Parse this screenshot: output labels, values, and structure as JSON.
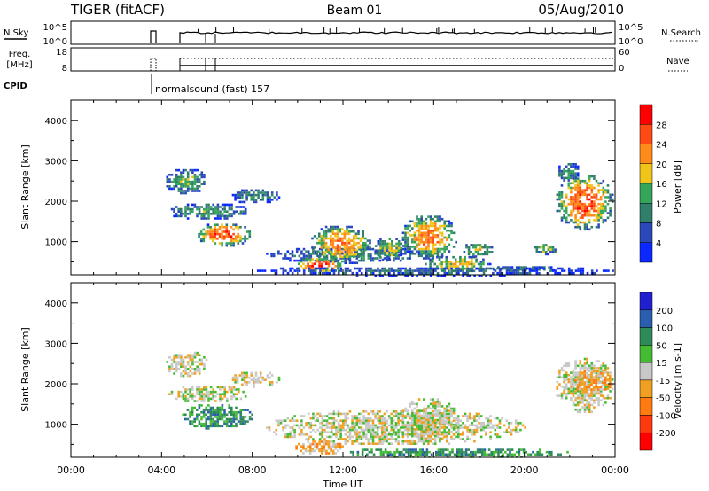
{
  "header": {
    "title": "TIGER (fitACF)",
    "beam": "Beam 01",
    "date": "05/Aug/2010"
  },
  "status": {
    "nsky_label": "N.Sky",
    "nsky_ticks": [
      "10^5",
      "10^0"
    ],
    "nsearch_label": "N.Search",
    "freq_label": [
      "Freq.",
      "[MHz]"
    ],
    "freq_ticks": [
      "18",
      "8"
    ],
    "nave_label": "Nave",
    "nave_ticks": [
      "60",
      "0"
    ],
    "cpid_label": "CPID",
    "cpid_text": "normalsound (fast) 157"
  },
  "chart_data": [
    {
      "type": "heatmap",
      "name": "power",
      "title": "",
      "xlabel": "Time UT",
      "ylabel": "Slant Range [km]",
      "xlim": [
        0,
        24
      ],
      "ylim": [
        180,
        4500
      ],
      "x_ticks": [
        "00:00",
        "04:00",
        "08:00",
        "12:00",
        "16:00",
        "20:00",
        "00:00"
      ],
      "y_ticks": [
        1000,
        2000,
        3000,
        4000
      ],
      "colorbar": {
        "label": "Power [dB]",
        "ticks": [
          "4",
          "8",
          "12",
          "16",
          "20",
          "24",
          "28"
        ],
        "colors": [
          "#0a28ff",
          "#2a48b8",
          "#2f7f6a",
          "#35a55a",
          "#f0c418",
          "#ff8c1a",
          "#ff4a14",
          "#ff0000"
        ]
      },
      "regions": [
        {
          "t0": 4.1,
          "t1": 6.0,
          "r0": 2200,
          "r1": 2850,
          "level": 0.45
        },
        {
          "t0": 4.2,
          "t1": 7.8,
          "r0": 1550,
          "r1": 2000,
          "level": 0.4
        },
        {
          "t0": 5.5,
          "t1": 7.9,
          "r0": 900,
          "r1": 1500,
          "level": 0.85
        },
        {
          "t0": 7.0,
          "t1": 9.2,
          "r0": 1950,
          "r1": 2350,
          "level": 0.35
        },
        {
          "t0": 8.5,
          "t1": 16.0,
          "r0": 500,
          "r1": 900,
          "level": 0.35
        },
        {
          "t0": 9.8,
          "t1": 12.0,
          "r0": 250,
          "r1": 650,
          "level": 0.9
        },
        {
          "t0": 10.5,
          "t1": 13.2,
          "r0": 500,
          "r1": 1450,
          "level": 0.75
        },
        {
          "t0": 13.3,
          "t1": 14.7,
          "r0": 550,
          "r1": 1150,
          "level": 0.55
        },
        {
          "t0": 14.5,
          "t1": 17.0,
          "r0": 600,
          "r1": 1700,
          "level": 0.75
        },
        {
          "t0": 15.5,
          "t1": 18.5,
          "r0": 250,
          "r1": 700,
          "level": 0.6
        },
        {
          "t0": 17.2,
          "t1": 18.6,
          "r0": 650,
          "r1": 1000,
          "level": 0.55
        },
        {
          "t0": 18.5,
          "t1": 21.5,
          "r0": 280,
          "r1": 450,
          "level": 0.3
        },
        {
          "t0": 20.3,
          "t1": 21.4,
          "r0": 700,
          "r1": 1000,
          "level": 0.55
        },
        {
          "t0": 21.3,
          "t1": 23.9,
          "r0": 1300,
          "r1": 2700,
          "level": 0.85
        },
        {
          "t0": 21.4,
          "t1": 22.4,
          "r0": 2500,
          "r1": 3000,
          "level": 0.4
        },
        {
          "t0": 8.0,
          "t1": 23.9,
          "r0": 180,
          "r1": 420,
          "level": 0.25
        }
      ]
    },
    {
      "type": "heatmap",
      "name": "velocity",
      "title": "",
      "xlabel": "Time UT",
      "ylabel": "Slant Range [km]",
      "xlim": [
        0,
        24
      ],
      "ylim": [
        180,
        4500
      ],
      "x_ticks": [
        "00:00",
        "04:00",
        "08:00",
        "12:00",
        "16:00",
        "20:00",
        "00:00"
      ],
      "y_ticks": [
        1000,
        2000,
        3000,
        4000
      ],
      "colorbar": {
        "label": "Velocity [m s-1]",
        "ticks": [
          "200",
          "100",
          "50",
          "15",
          "-15",
          "-50",
          "-100",
          "-200"
        ],
        "colors": [
          "#2020d0",
          "#2a5fb0",
          "#2f8a5a",
          "#44bb33",
          "#c8c8c8",
          "#f0a020",
          "#ff7a10",
          "#ff3a10",
          "#ff0000"
        ]
      },
      "regions": [
        {
          "t0": 4.1,
          "t1": 6.0,
          "r0": 2200,
          "r1": 2850,
          "level": 0.5
        },
        {
          "t0": 4.2,
          "t1": 7.8,
          "r0": 1550,
          "r1": 2000,
          "level": 0.5
        },
        {
          "t0": 4.8,
          "t1": 8.0,
          "r0": 900,
          "r1": 1550,
          "level": 0.72
        },
        {
          "t0": 7.0,
          "t1": 9.2,
          "r0": 1950,
          "r1": 2350,
          "level": 0.5
        },
        {
          "t0": 8.5,
          "t1": 20.0,
          "r0": 500,
          "r1": 1400,
          "level": 0.5
        },
        {
          "t0": 9.8,
          "t1": 12.0,
          "r0": 250,
          "r1": 650,
          "level": 0.4
        },
        {
          "t0": 14.5,
          "t1": 17.0,
          "r0": 600,
          "r1": 1700,
          "level": 0.5
        },
        {
          "t0": 12.0,
          "t1": 22.0,
          "r0": 200,
          "r1": 450,
          "level": 0.72
        },
        {
          "t0": 21.3,
          "t1": 23.9,
          "r0": 1300,
          "r1": 2700,
          "level": 0.5
        },
        {
          "t0": 22.0,
          "t1": 23.9,
          "r0": 1800,
          "r1": 2400,
          "level": 0.38
        }
      ]
    }
  ]
}
